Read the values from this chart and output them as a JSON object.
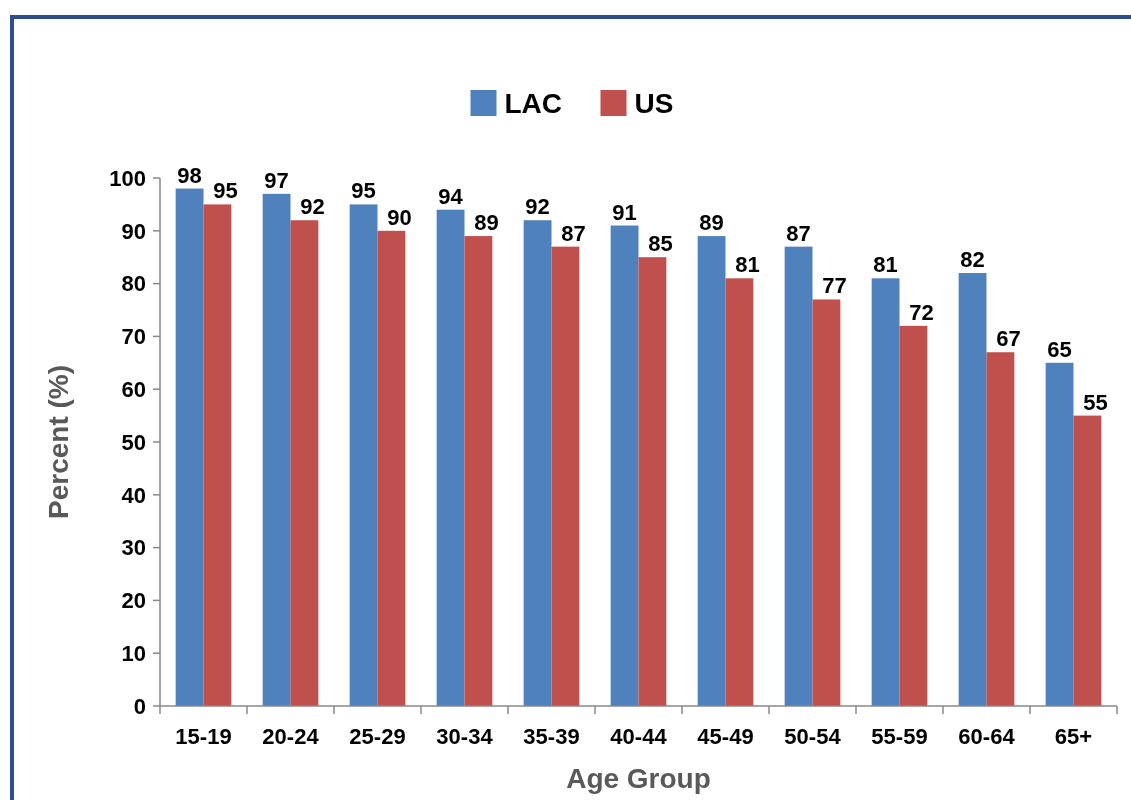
{
  "chart_data": {
    "type": "bar",
    "xlabel": "Age Group",
    "ylabel": "Percent (%)",
    "categories": [
      "15-19",
      "20-24",
      "25-29",
      "30-34",
      "35-39",
      "40-44",
      "45-49",
      "50-54",
      "55-59",
      "60-64",
      "65+"
    ],
    "series": [
      {
        "name": "LAC",
        "color": "#4f81bd",
        "values": [
          98,
          97,
          95,
          94,
          92,
          91,
          89,
          87,
          81,
          82,
          65
        ]
      },
      {
        "name": "US",
        "color": "#c0504d",
        "values": [
          95,
          92,
          90,
          89,
          87,
          85,
          81,
          77,
          72,
          67,
          55
        ]
      }
    ],
    "ylim": [
      0,
      100
    ],
    "yticks": [
      0,
      10,
      20,
      30,
      40,
      50,
      60,
      70,
      80,
      90,
      100
    ],
    "grid": false,
    "legend": "top",
    "data_labels": true
  }
}
